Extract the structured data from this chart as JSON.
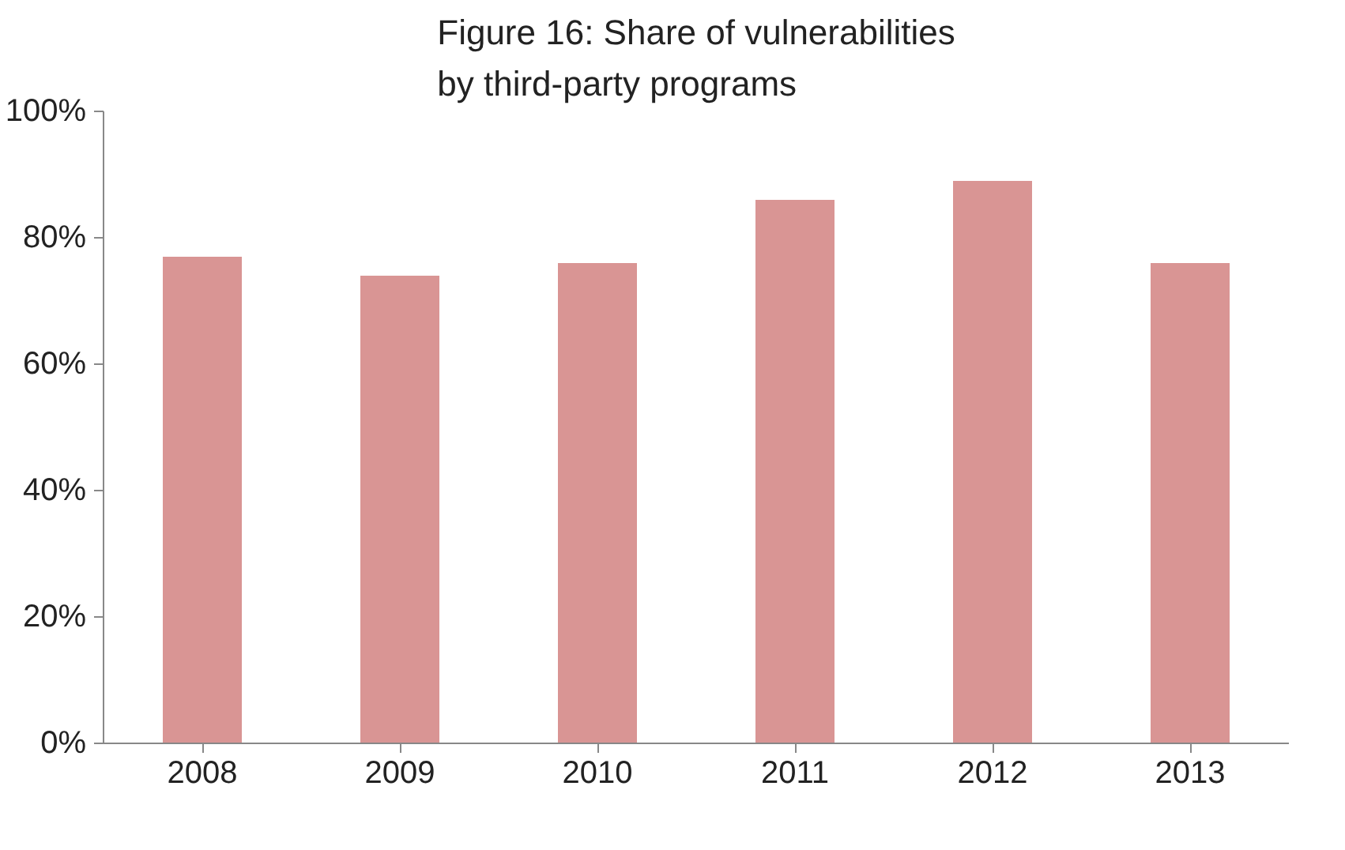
{
  "chart_data": {
    "type": "bar",
    "title": "Figure 16: Share of vulnerabilities\nby third-party programs",
    "categories": [
      "2008",
      "2009",
      "2010",
      "2011",
      "2012",
      "2013"
    ],
    "values": [
      77,
      74,
      76,
      86,
      89,
      76
    ],
    "color": "#d99594",
    "ylim": [
      0,
      100
    ],
    "yticks": [
      {
        "value": 0,
        "label": "0%"
      },
      {
        "value": 20,
        "label": "20%"
      },
      {
        "value": 40,
        "label": "40%"
      },
      {
        "value": 60,
        "label": "60%"
      },
      {
        "value": 80,
        "label": "80%"
      },
      {
        "value": 100,
        "label": "100%"
      }
    ],
    "grid": false
  }
}
